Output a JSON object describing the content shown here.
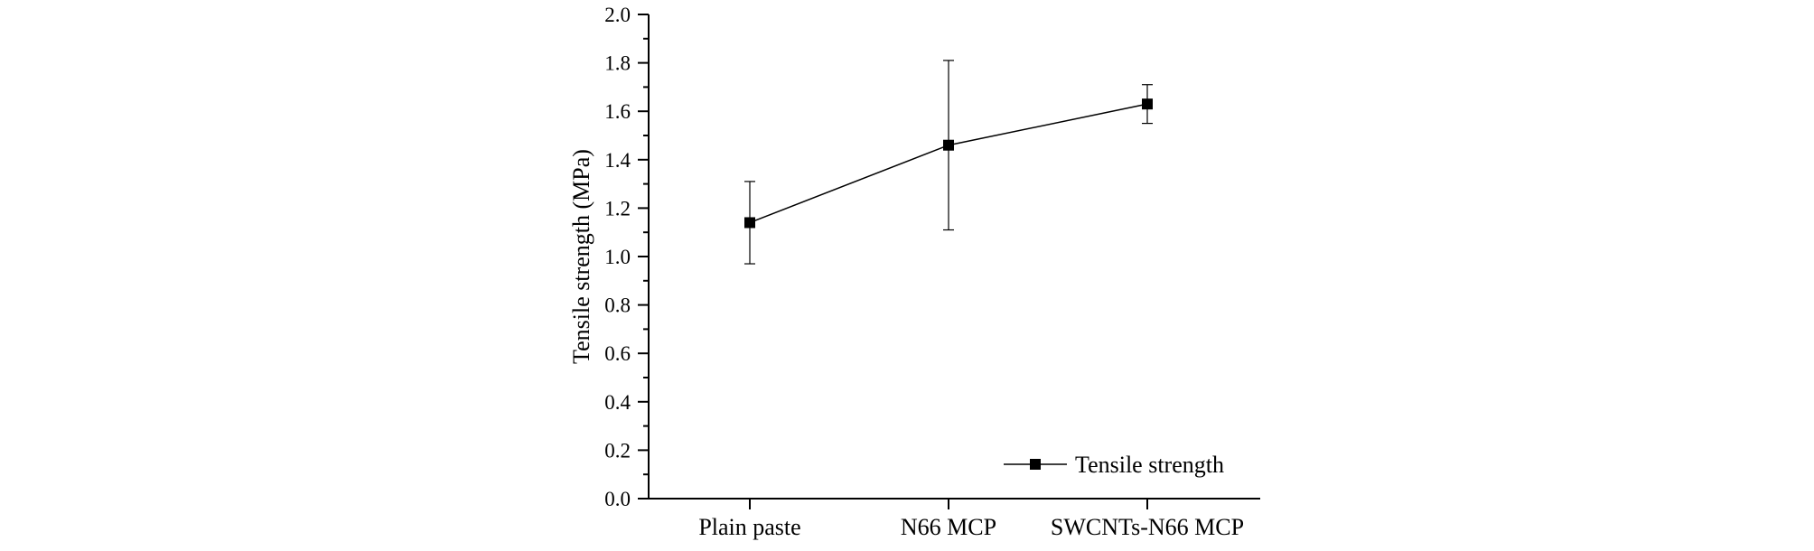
{
  "chart_data": {
    "type": "line",
    "title": "",
    "xlabel": "",
    "ylabel": "Tensile strength (MPa)",
    "categories": [
      "Plain paste",
      "N66 MCP",
      "SWCNTs-N66 MCP"
    ],
    "series": [
      {
        "name": "Tensile strength",
        "values": [
          1.14,
          1.46,
          1.63
        ],
        "error_low": [
          0.97,
          1.11,
          1.55
        ],
        "error_high": [
          1.31,
          1.81,
          1.71
        ],
        "marker": "square"
      }
    ],
    "ylim": [
      0.0,
      2.0
    ],
    "y_ticks": [
      "0.0",
      "0.2",
      "0.4",
      "0.6",
      "0.8",
      "1.0",
      "1.2",
      "1.4",
      "1.6",
      "1.8",
      "2.0"
    ],
    "grid": false,
    "legend": {
      "position": "bottom-right",
      "entries": [
        "Tensile strength"
      ]
    },
    "colors": {
      "line": "#000000",
      "marker": "#000000",
      "axis": "#000000"
    }
  }
}
